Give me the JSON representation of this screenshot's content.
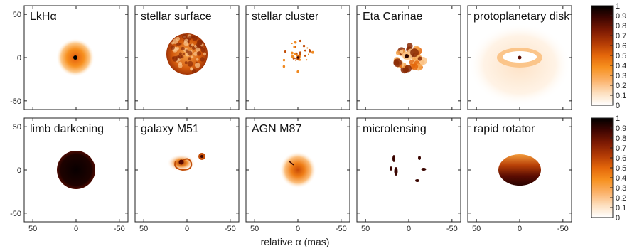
{
  "figure": {
    "xlabel": "relative α (mas)",
    "tick_values": [
      50,
      0,
      -50
    ],
    "ytick_values": [
      50,
      0,
      -50
    ]
  },
  "panels": [
    {
      "id": "lkha",
      "title": "LkHα",
      "kind": "ring-disk"
    },
    {
      "id": "stellar-surface",
      "title": "stellar surface",
      "kind": "granulated-star"
    },
    {
      "id": "stellar-cluster",
      "title": "stellar cluster",
      "kind": "point-cluster"
    },
    {
      "id": "eta-carinae",
      "title": "Eta Carinae",
      "kind": "clumpy-nebula"
    },
    {
      "id": "protoplanetary-disk",
      "title": "protoplanetary disk",
      "kind": "edge-on-disk"
    },
    {
      "id": "limb-darkening",
      "title": "limb darkening",
      "kind": "uniform-disk"
    },
    {
      "id": "galaxy-m51",
      "title": "galaxy M51",
      "kind": "spiral-galaxy"
    },
    {
      "id": "agn-m87",
      "title": "AGN M87",
      "kind": "gaussian-blob"
    },
    {
      "id": "microlensing",
      "title": "microlensing",
      "kind": "lensed-arcs"
    },
    {
      "id": "rapid-rotator",
      "title": "rapid rotator",
      "kind": "oblate-star"
    }
  ],
  "colorbar": {
    "ticks": [
      "1",
      "0.9",
      "0.8",
      "0.7",
      "0.6",
      "0.5",
      "0.4",
      "0.3",
      "0.2",
      "0.1",
      "0"
    ],
    "colormap": [
      "#ffffff",
      "#fde0c0",
      "#fbb26a",
      "#f7911f",
      "#e4670a",
      "#b43c05",
      "#7d1a03",
      "#3d0501",
      "#000000"
    ]
  }
}
